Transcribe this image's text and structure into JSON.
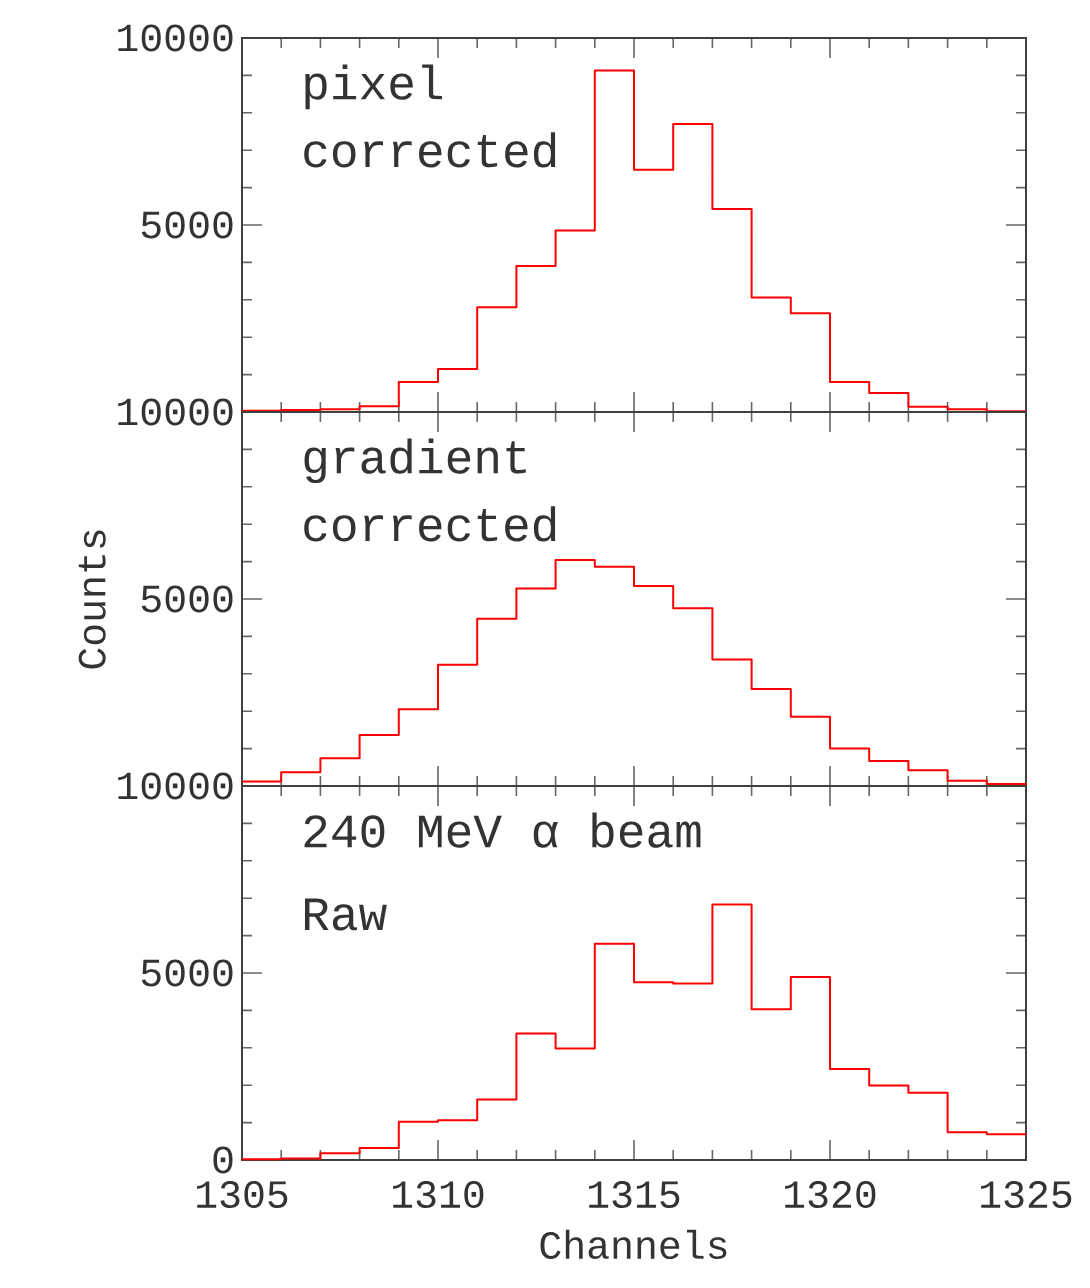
{
  "chart_data": [
    {
      "type": "histogram",
      "bins": [
        1305,
        1306,
        1307,
        1308,
        1309,
        1310,
        1311,
        1312,
        1313,
        1314,
        1315,
        1316,
        1317,
        1318,
        1319,
        1320,
        1321,
        1322,
        1323,
        1324,
        1325
      ],
      "values": [
        30,
        50,
        70,
        150,
        800,
        1150,
        2800,
        3900,
        4850,
        9130,
        6480,
        7700,
        5430,
        3060,
        2640,
        800,
        510,
        140,
        70,
        20
      ],
      "color": "#ff0000",
      "xlim": [
        1305,
        1325
      ],
      "ylim": [
        0,
        10000
      ],
      "xticks": [
        1305,
        1310,
        1315,
        1320,
        1325
      ],
      "yticks": [
        {
          "value": 0,
          "label": null
        },
        5000,
        10000
      ],
      "tick_labels": "y",
      "annotations": [
        "pixel corrected"
      ]
    },
    {
      "type": "histogram",
      "bins": [
        1305,
        1306,
        1307,
        1308,
        1309,
        1310,
        1311,
        1312,
        1313,
        1314,
        1315,
        1316,
        1317,
        1318,
        1319,
        1320,
        1321,
        1322,
        1323,
        1324,
        1325
      ],
      "values": [
        120,
        370,
        740,
        1360,
        2050,
        3240,
        4470,
        5280,
        6040,
        5860,
        5350,
        4750,
        3380,
        2590,
        1850,
        1000,
        670,
        420,
        140,
        50
      ],
      "color": "#ff0000",
      "xlim": [
        1305,
        1325
      ],
      "ylim": [
        0,
        10000
      ],
      "xticks": [
        1305,
        1310,
        1315,
        1320,
        1325
      ],
      "yticks": [
        {
          "value": 0,
          "label": null
        },
        5000,
        10000
      ],
      "tick_labels": "y",
      "ylabel": "Counts",
      "annotations": [
        "gradient corrected"
      ]
    },
    {
      "type": "histogram",
      "bins": [
        1305,
        1306,
        1307,
        1308,
        1309,
        1310,
        1311,
        1312,
        1313,
        1314,
        1315,
        1316,
        1317,
        1318,
        1319,
        1320,
        1321,
        1322,
        1323,
        1324,
        1325
      ],
      "values": [
        20,
        40,
        180,
        320,
        1020,
        1060,
        1620,
        3380,
        2980,
        5780,
        4750,
        4720,
        6830,
        4030,
        4890,
        2430,
        1990,
        1800,
        740,
        690
      ],
      "color": "#ff0000",
      "xlim": [
        1305,
        1325
      ],
      "ylim": [
        0,
        10000
      ],
      "xticks": [
        1305,
        1310,
        1315,
        1320,
        1325
      ],
      "yticks": [
        0,
        5000,
        10000
      ],
      "xlabel": "Channels",
      "annotations": [
        "240 MeV α beam",
        "Raw"
      ]
    }
  ]
}
